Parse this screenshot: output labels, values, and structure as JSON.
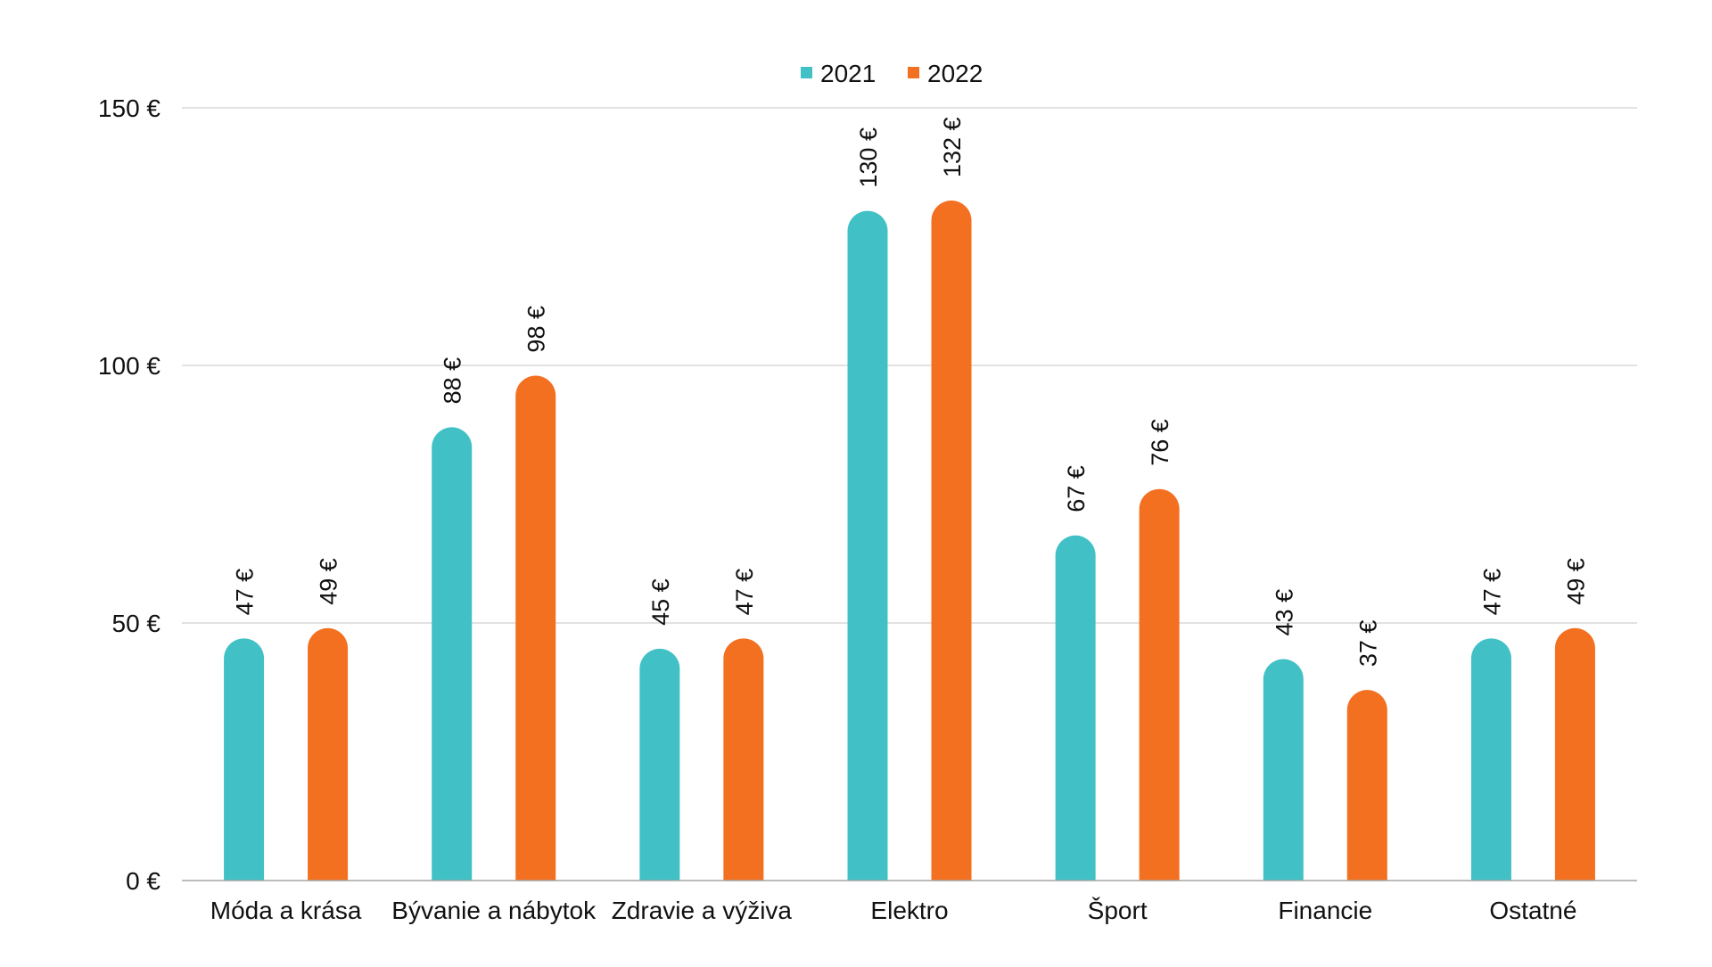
{
  "chart_data": {
    "type": "bar",
    "title": "",
    "xlabel": "",
    "ylabel": "",
    "ylim": [
      0,
      150
    ],
    "yticks": [
      0,
      50,
      100,
      150
    ],
    "yticks_labels": [
      "0 €",
      "50 €",
      "100 €",
      "150 €"
    ],
    "value_suffix": " €",
    "grid": true,
    "legend_position": "top-center",
    "categories": [
      "Móda a krása",
      "Bývanie a nábytok",
      "Zdravie a výživa",
      "Elektro",
      "Šport",
      "Financie",
      "Ostatné"
    ],
    "series": [
      {
        "name": "2021",
        "color": "#41c1c6",
        "values": [
          47,
          88,
          45,
          130,
          67,
          43,
          47
        ],
        "labels": [
          "47 €",
          "88 €",
          "45 €",
          "130 €",
          "67 €",
          "43 €",
          "47 €"
        ]
      },
      {
        "name": "2022",
        "color": "#f37021",
        "values": [
          49,
          98,
          47,
          132,
          76,
          37,
          49
        ],
        "labels": [
          "49 €",
          "98 €",
          "47 €",
          "132 €",
          "76 €",
          "37 €",
          "49 €"
        ]
      }
    ],
    "colors": {
      "grid": "#d9d9d9",
      "axis": "#a6a6a6",
      "text": "#111111"
    }
  }
}
